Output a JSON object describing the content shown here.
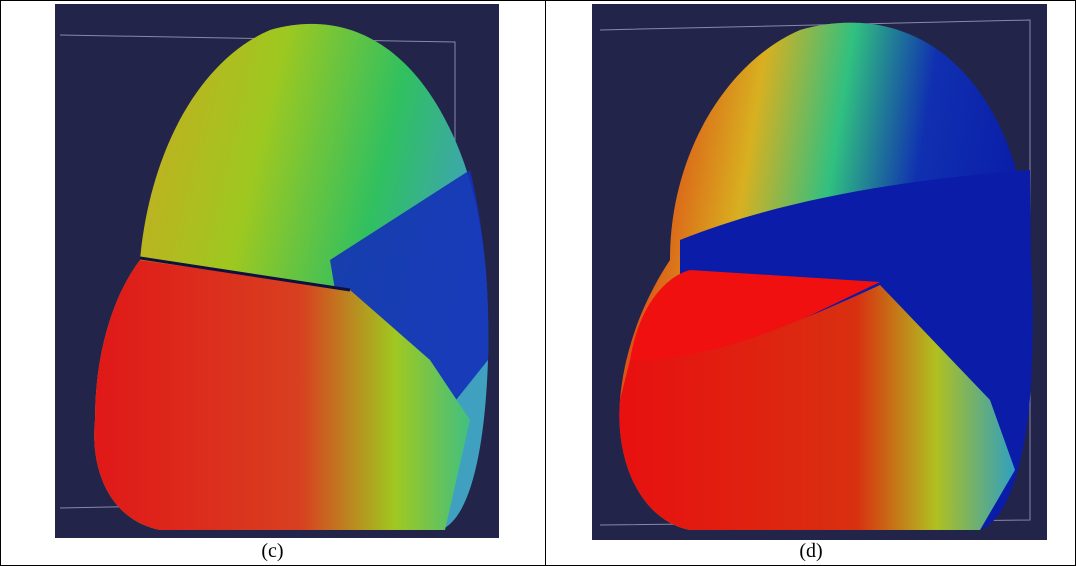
{
  "panels": [
    {
      "caption": "(c)"
    },
    {
      "caption": "(d)"
    }
  ]
}
